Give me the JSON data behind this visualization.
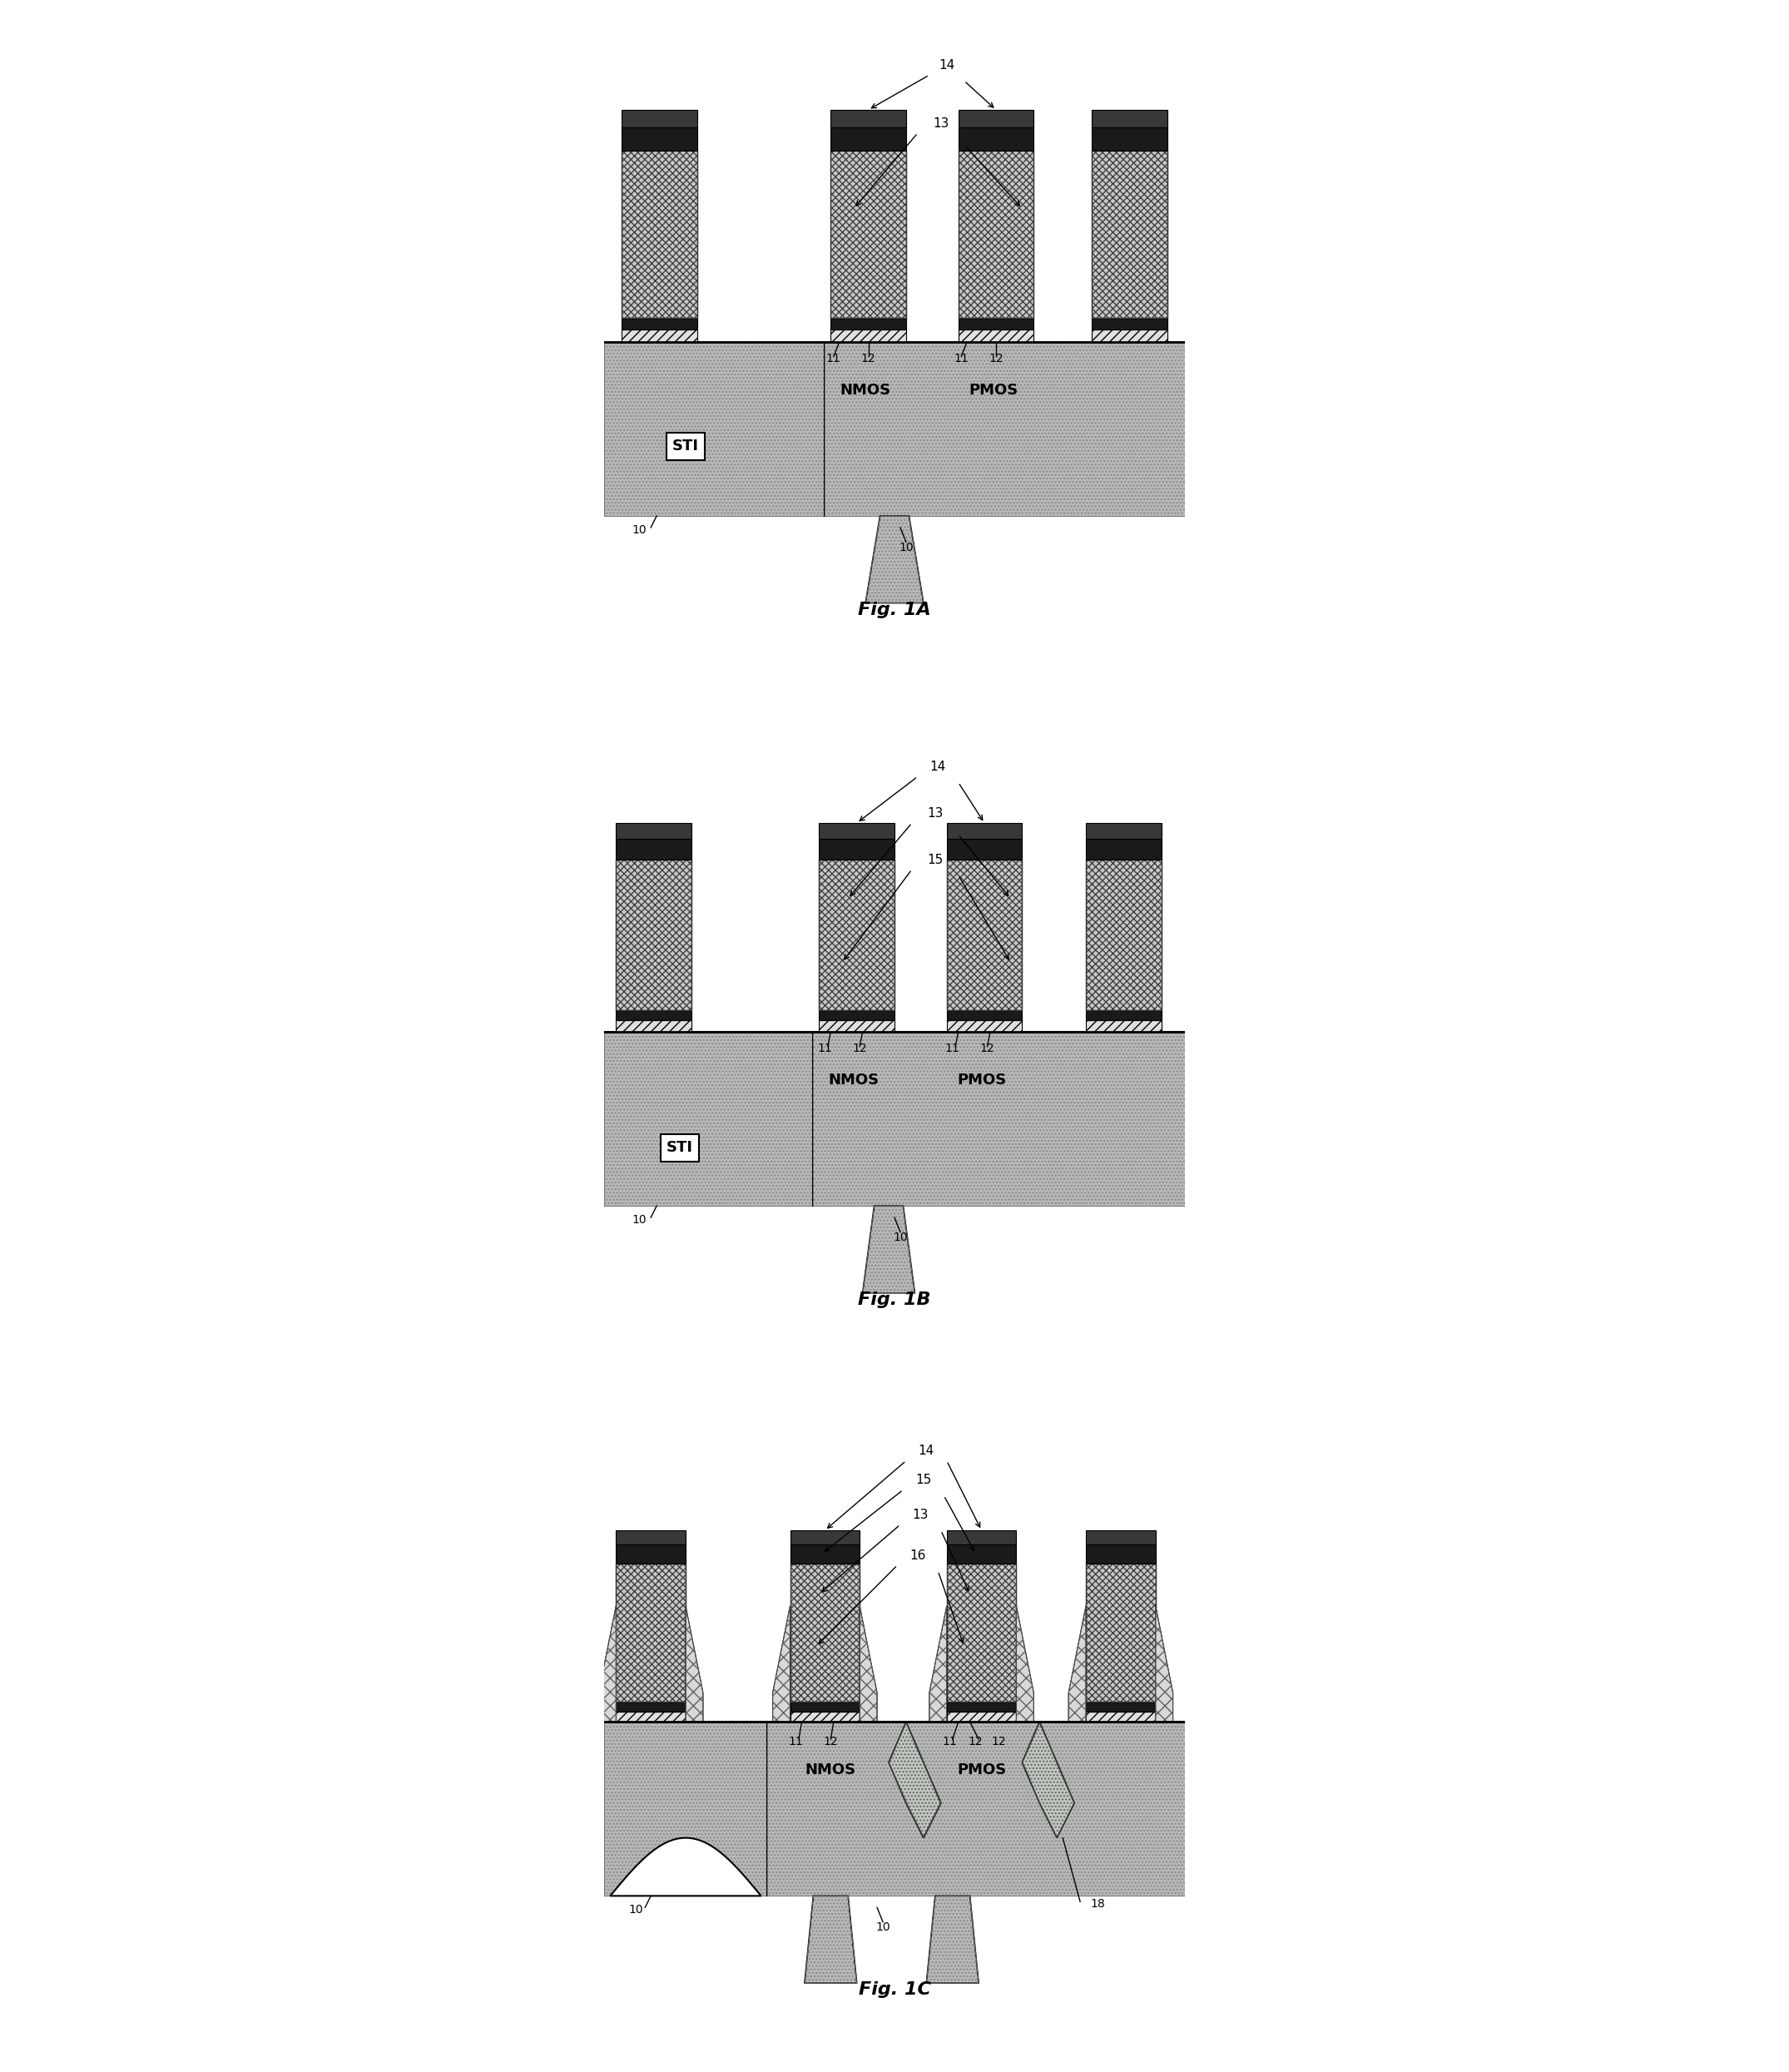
{
  "fig_width": 21.5,
  "fig_height": 24.9,
  "bg_color": "#ffffff",
  "substrate_color": "#b8b8b8",
  "poly_cross_bg": "#c8c8c8",
  "poly_cross_ec": "#505050",
  "dielectric_fc": "#e8e8e8",
  "cap_fc": "#282828",
  "lines_fc": "#202020",
  "epi_fc": "#c0c0c0",
  "spacer_fc": "#d0d0d0",
  "figures": [
    "Fig. 1A",
    "Fig. 1B",
    "Fig. 1C"
  ]
}
